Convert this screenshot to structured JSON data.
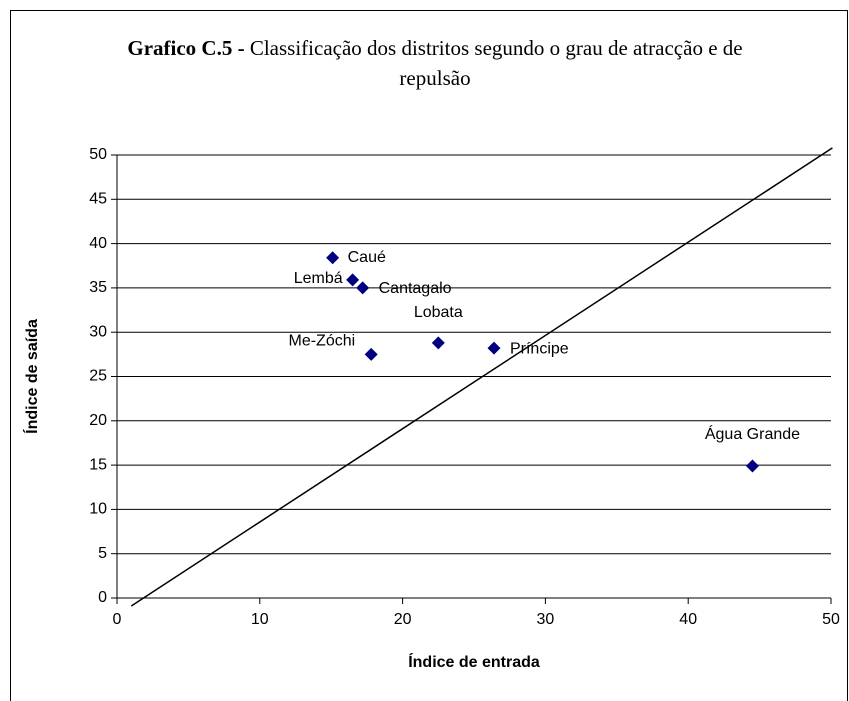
{
  "chart_data": {
    "type": "scatter",
    "title_bold": "Grafico C.5 -",
    "title": "Classificação dos distritos segundo o grau de atracção e de repulsão",
    "xlabel": "Índice de entrada",
    "ylabel": "Índice de saída",
    "color": "#000080",
    "labels": [
      "Caué",
      "Lembá",
      "Cantagalo",
      "Me-Zóchi",
      "Lobata",
      "Príncipe",
      "Água Grande"
    ],
    "x": [
      15.1,
      16.5,
      17.2,
      17.8,
      22.5,
      26.4,
      44.5
    ],
    "values": [
      38.4,
      35.9,
      35.0,
      27.5,
      28.8,
      28.2,
      14.9
    ],
    "reference_line": {
      "x": [
        1.0,
        50.1
      ],
      "y": [
        -0.9,
        50.8
      ]
    },
    "xlim": [
      0,
      50
    ],
    "xticks": [
      0,
      10,
      20,
      30,
      40,
      50
    ],
    "ylim": [
      0,
      50
    ],
    "yticks": [
      0,
      5,
      10,
      15,
      20,
      25,
      30,
      35,
      40,
      45,
      50
    ],
    "grid": true
  }
}
